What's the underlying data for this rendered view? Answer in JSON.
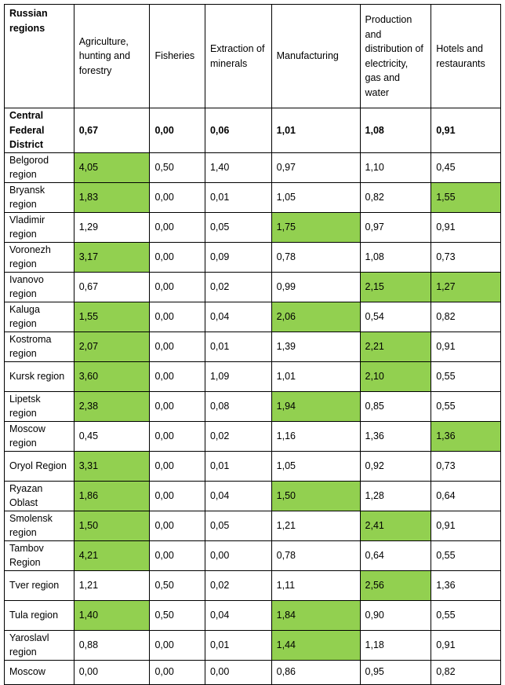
{
  "highlight_color": "#92d050",
  "headers": [
    "Russian regions",
    "Agriculture, hunting and forestry",
    "Fisheries",
    "Extraction of minerals",
    "Manufacturing",
    "Production and distribution of electricity, gas and water",
    "Hotels and restaurants"
  ],
  "summary": {
    "name": "Central Federal District",
    "values": [
      "0,67",
      "0,00",
      "0,06",
      "1,01",
      "1,08",
      "0,91"
    ]
  },
  "rows": [
    {
      "name": "Belgorod region",
      "values": [
        "4,05",
        "0,50",
        "1,40",
        "0,97",
        "1,10",
        "0,45"
      ],
      "highlight": [
        true,
        false,
        false,
        false,
        false,
        false
      ]
    },
    {
      "name": "Bryansk region",
      "values": [
        "1,83",
        "0,00",
        "0,01",
        "1,05",
        "0,82",
        "1,55"
      ],
      "highlight": [
        true,
        false,
        false,
        false,
        false,
        true
      ]
    },
    {
      "name": "Vladimir region",
      "values": [
        "1,29",
        "0,00",
        "0,05",
        "1,75",
        "0,97",
        "0,91"
      ],
      "highlight": [
        false,
        false,
        false,
        true,
        false,
        false
      ]
    },
    {
      "name": "Voronezh region",
      "values": [
        "3,17",
        "0,00",
        "0,09",
        "0,78",
        "1,08",
        "0,73"
      ],
      "highlight": [
        true,
        false,
        false,
        false,
        false,
        false
      ]
    },
    {
      "name": "Ivanovo region",
      "values": [
        "0,67",
        "0,00",
        "0,02",
        "0,99",
        "2,15",
        "1,27"
      ],
      "highlight": [
        false,
        false,
        false,
        false,
        true,
        true
      ]
    },
    {
      "name": "Kaluga region",
      "values": [
        "1,55",
        "0,00",
        "0,04",
        "2,06",
        "0,54",
        "0,82"
      ],
      "highlight": [
        true,
        false,
        false,
        true,
        false,
        false
      ]
    },
    {
      "name": "Kostroma region",
      "values": [
        "2,07",
        "0,00",
        "0,01",
        "1,39",
        "2,21",
        "0,91"
      ],
      "highlight": [
        true,
        false,
        false,
        false,
        true,
        false
      ]
    },
    {
      "name": "Kursk region",
      "values": [
        "3,60",
        "0,00",
        "1,09",
        "1,01",
        "2,10",
        "0,55"
      ],
      "highlight": [
        true,
        false,
        false,
        false,
        true,
        false
      ]
    },
    {
      "name": "Lipetsk region",
      "values": [
        "2,38",
        "0,00",
        "0,08",
        "1,94",
        "0,85",
        "0,55"
      ],
      "highlight": [
        true,
        false,
        false,
        true,
        false,
        false
      ]
    },
    {
      "name": "Moscow region",
      "values": [
        "0,45",
        "0,00",
        "0,02",
        "1,16",
        "1,36",
        "1,36"
      ],
      "highlight": [
        false,
        false,
        false,
        false,
        false,
        true
      ]
    },
    {
      "name": "Oryol Region",
      "values": [
        "3,31",
        "0,00",
        "0,01",
        "1,05",
        "0,92",
        "0,73"
      ],
      "highlight": [
        true,
        false,
        false,
        false,
        false,
        false
      ]
    },
    {
      "name": "Ryazan Oblast",
      "values": [
        "1,86",
        "0,00",
        "0,04",
        "1,50",
        "1,28",
        "0,64"
      ],
      "highlight": [
        true,
        false,
        false,
        true,
        false,
        false
      ]
    },
    {
      "name": "Smolensk region",
      "values": [
        "1,50",
        "0,00",
        "0,05",
        "1,21",
        "2,41",
        "0,91"
      ],
      "highlight": [
        true,
        false,
        false,
        false,
        true,
        false
      ]
    },
    {
      "name": "Tambov Region",
      "values": [
        "4,21",
        "0,00",
        "0,00",
        "0,78",
        "0,64",
        "0,55"
      ],
      "highlight": [
        true,
        false,
        false,
        false,
        false,
        false
      ]
    },
    {
      "name": "Tver region",
      "values": [
        "1,21",
        "0,50",
        "0,02",
        "1,11",
        "2,56",
        "1,36"
      ],
      "highlight": [
        false,
        false,
        false,
        false,
        true,
        false
      ]
    },
    {
      "name": "Tula region",
      "values": [
        "1,40",
        "0,50",
        "0,04",
        "1,84",
        "0,90",
        "0,55"
      ],
      "highlight": [
        true,
        false,
        false,
        true,
        false,
        false
      ]
    },
    {
      "name": "Yaroslavl region",
      "values": [
        "0,88",
        "0,00",
        "0,01",
        "1,44",
        "1,18",
        "0,91"
      ],
      "highlight": [
        false,
        false,
        false,
        true,
        false,
        false
      ]
    },
    {
      "name": "Moscow",
      "values": [
        "0,00",
        "0,00",
        "0,00",
        "0,86",
        "0,95",
        "0,82"
      ],
      "highlight": [
        false,
        false,
        false,
        false,
        false,
        false
      ]
    }
  ]
}
